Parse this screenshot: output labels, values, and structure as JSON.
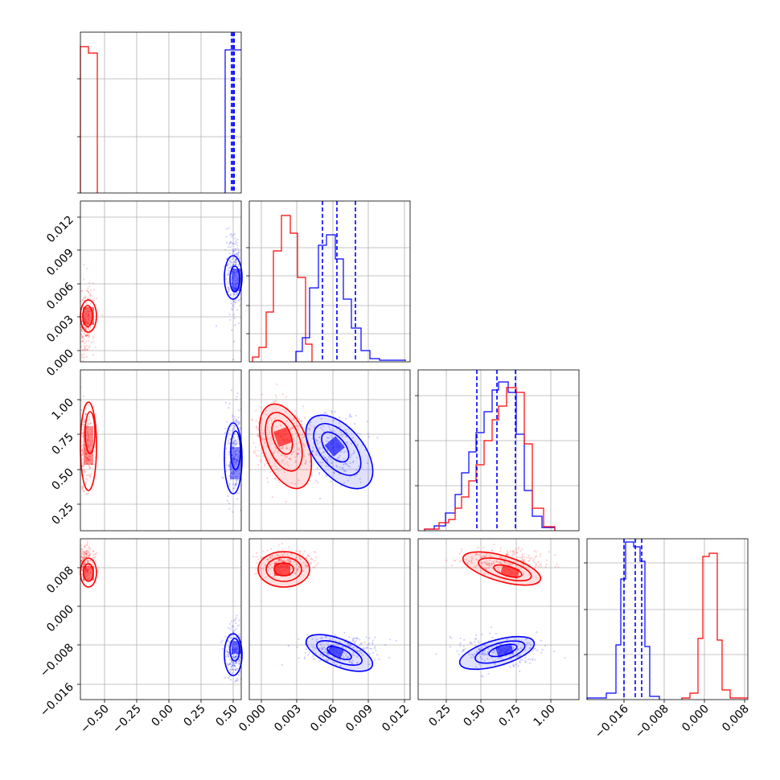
{
  "chart_data": [
    {
      "type": "histogram",
      "panel": "p1-marginal",
      "series": [
        {
          "name": "",
          "color": "#ff0000",
          "x": [
            -0.57,
            -0.54
          ],
          "values": [
            0.92,
            0.88
          ]
        },
        {
          "name": "",
          "color": "#0000ff",
          "x": [
            0.485,
            0.51,
            0.535
          ],
          "values": [
            0.86,
            0.9,
            0.9
          ]
        }
      ],
      "quantile_lines": [
        0.48,
        0.49,
        0.5
      ],
      "xlim": [
        -0.6,
        0.55
      ]
    },
    {
      "type": "scatter",
      "panel": "p1-vs-p2",
      "series": [
        {
          "name": "",
          "color": "#ff0000",
          "center": [
            -0.56,
            0.002
          ],
          "spread": [
            0.03,
            0.0015
          ]
        },
        {
          "name": "",
          "color": "#0000ff",
          "center": [
            0.5,
            0.006
          ],
          "spread": [
            0.03,
            0.0018
          ]
        }
      ],
      "xlim": [
        -0.6,
        0.55
      ],
      "ylim": [
        -0.0015,
        0.0125
      ]
    },
    {
      "type": "scatter",
      "panel": "p1-vs-p3",
      "series": [
        {
          "name": "",
          "color": "#ff0000",
          "center": [
            -0.57,
            0.65
          ],
          "spread": [
            0.03,
            0.15
          ]
        },
        {
          "name": "",
          "color": "#0000ff",
          "center": [
            0.5,
            0.6
          ],
          "spread": [
            0.03,
            0.15
          ]
        }
      ],
      "xlim": [
        -0.6,
        0.55
      ],
      "ylim": [
        0.05,
        1.2
      ]
    },
    {
      "type": "scatter",
      "panel": "p1-vs-p4",
      "series": [
        {
          "name": "",
          "color": "#ff0000",
          "center": [
            -0.56,
            0.0075
          ],
          "spread": [
            0.03,
            0.0015
          ]
        },
        {
          "name": "",
          "color": "#0000ff",
          "center": [
            0.5,
            -0.01
          ],
          "spread": [
            0.03,
            0.0025
          ]
        }
      ],
      "xlim": [
        -0.6,
        0.55
      ],
      "ylim": [
        -0.019,
        0.012
      ]
    },
    {
      "type": "histogram",
      "panel": "p2-marginal",
      "series": [
        {
          "name": "",
          "color": "#ff0000",
          "x": [
            -0.0006,
            0.0002,
            0.001,
            0.0018,
            0.0026,
            0.0034,
            0.0042,
            0.005
          ],
          "values": [
            0.03,
            0.08,
            0.3,
            0.68,
            0.88,
            0.82,
            0.5,
            0.12
          ]
        },
        {
          "name": "",
          "color": "#0000ff",
          "x": [
            0.0034,
            0.0042,
            0.005,
            0.0058,
            0.0066,
            0.0074,
            0.0082,
            0.009,
            0.0098,
            0.0106,
            0.0114
          ],
          "values": [
            0.05,
            0.12,
            0.42,
            0.72,
            0.78,
            0.64,
            0.38,
            0.2,
            0.06,
            0.03,
            0.01
          ]
        }
      ],
      "quantile_lines": [
        0.0047,
        0.0061,
        0.0078
      ],
      "xlim": [
        -0.001,
        0.0125
      ]
    },
    {
      "type": "scatter",
      "panel": "p2-vs-p3",
      "series": [
        {
          "name": "",
          "color": "#ff0000",
          "center": [
            0.0017,
            0.7
          ],
          "spread": [
            0.0012,
            0.14
          ]
        },
        {
          "name": "",
          "color": "#0000ff",
          "center": [
            0.0062,
            0.64
          ],
          "spread": [
            0.0015,
            0.12
          ]
        }
      ],
      "xlim": [
        -0.001,
        0.0125
      ],
      "ylim": [
        0.05,
        1.2
      ]
    },
    {
      "type": "scatter",
      "panel": "p2-vs-p4",
      "series": [
        {
          "name": "",
          "color": "#ff0000",
          "center": [
            0.0018,
            0.0075
          ],
          "spread": [
            0.0012,
            0.0013
          ]
        },
        {
          "name": "",
          "color": "#0000ff",
          "center": [
            0.0065,
            -0.0095
          ],
          "spread": [
            0.0016,
            0.0015
          ]
        }
      ],
      "xlim": [
        -0.001,
        0.0125
      ],
      "ylim": [
        -0.019,
        0.012
      ]
    },
    {
      "type": "histogram",
      "panel": "p3-marginal",
      "series": [
        {
          "name": "",
          "color": "#0000ff",
          "x": [
            0.05,
            0.14,
            0.23,
            0.32,
            0.41,
            0.5,
            0.59,
            0.68,
            0.77,
            0.86,
            0.95
          ],
          "values": [
            0.02,
            0.05,
            0.12,
            0.25,
            0.42,
            0.62,
            0.8,
            0.82,
            0.6,
            0.22,
            0.05
          ]
        },
        {
          "name": "",
          "color": "#ff0000",
          "x": [
            0.05,
            0.14,
            0.23,
            0.32,
            0.41,
            0.5,
            0.59,
            0.68,
            0.77,
            0.86,
            0.95
          ],
          "values": [
            0.02,
            0.04,
            0.08,
            0.18,
            0.34,
            0.52,
            0.7,
            0.8,
            0.74,
            0.28,
            0.06
          ]
        }
      ],
      "quantile_lines": [
        0.46,
        0.61,
        0.74
      ],
      "xlim": [
        0.05,
        1.2
      ]
    },
    {
      "type": "scatter",
      "panel": "p3-vs-p4",
      "series": [
        {
          "name": "",
          "color": "#ff0000",
          "center": [
            0.68,
            0.0075
          ],
          "spread": [
            0.15,
            0.0012
          ]
        },
        {
          "name": "",
          "color": "#0000ff",
          "center": [
            0.62,
            -0.0095
          ],
          "spread": [
            0.14,
            0.0015
          ]
        }
      ],
      "xlim": [
        0.05,
        1.2
      ],
      "ylim": [
        -0.019,
        0.012
      ]
    },
    {
      "type": "histogram",
      "panel": "p4-marginal",
      "series": [
        {
          "name": "",
          "color": "#0000ff",
          "x": [
            -0.02,
            -0.0178,
            -0.0156,
            -0.0134,
            -0.0112,
            -0.009,
            -0.0068,
            -0.0046
          ],
          "values": [
            0.01,
            0.04,
            0.35,
            0.9,
            0.92,
            0.62,
            0.1,
            0.01
          ]
        },
        {
          "name": "",
          "color": "#ff0000",
          "x": [
            -0.0046,
            -0.0024,
            -0.0002,
            0.002,
            0.0042,
            0.0064,
            0.0086,
            0.0108
          ],
          "values": [
            0.01,
            0.04,
            0.1,
            0.42,
            0.82,
            0.88,
            0.28,
            0.03
          ]
        }
      ],
      "quantile_lines": [
        -0.0127,
        -0.0104,
        -0.0091
      ],
      "xlim": [
        -0.02,
        0.0125
      ]
    }
  ],
  "ticks": {
    "p1_x": [
      "−0.50",
      "−0.25",
      "0.00",
      "0.25",
      "0.50"
    ],
    "p2_y": [
      "0.012",
      "0.009",
      "0.006",
      "0.003",
      "0.000"
    ],
    "p3_y": [
      "1.00",
      "0.75",
      "0.50",
      "0.25"
    ],
    "p4_y": [
      "0.008",
      "0.000",
      "−0.008",
      "−0.016"
    ],
    "p2_x": [
      "0.000",
      "0.003",
      "0.006",
      "0.009",
      "0.012"
    ],
    "p3_x": [
      "0.25",
      "0.50",
      "0.75",
      "1.00"
    ],
    "p4_x": [
      "−0.016",
      "−0.008",
      "0.000",
      "0.008"
    ]
  },
  "colors": {
    "series_a": "#ff0000",
    "series_b": "#0000ff",
    "grid": "#b0b0b0",
    "axes": "#000000"
  }
}
